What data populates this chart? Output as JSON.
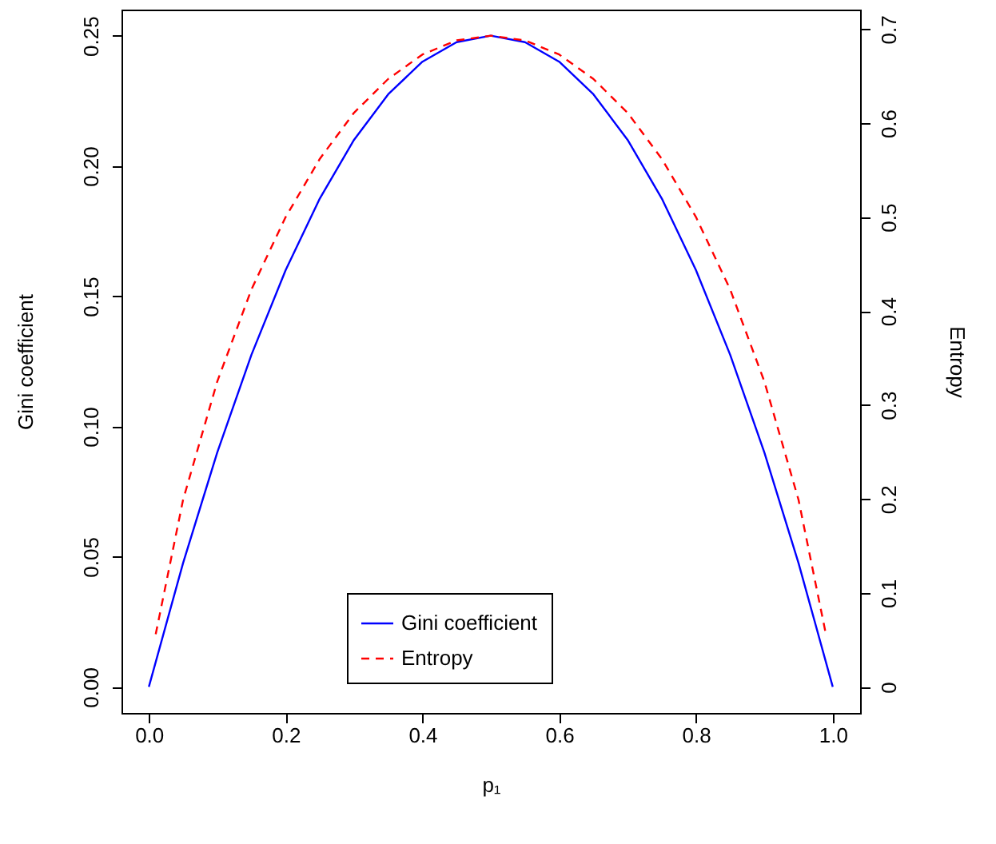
{
  "chart_data": {
    "type": "line",
    "xlabel": "p₁",
    "ylabel": "Gini coefficient",
    "y2label": "Entropy",
    "xlim": [
      -0.04,
      1.04
    ],
    "xticks": [
      {
        "value": 0,
        "label": "0.0"
      },
      {
        "value": 0.2,
        "label": "0.2"
      },
      {
        "value": 0.4,
        "label": "0.4"
      },
      {
        "value": 0.6,
        "label": "0.6"
      },
      {
        "value": 0.8,
        "label": "0.8"
      },
      {
        "value": 1,
        "label": "1.0"
      }
    ],
    "ylim": [
      -0.01,
      0.26
    ],
    "yticks": [
      {
        "value": 0,
        "label": "0.00"
      },
      {
        "value": 0.05,
        "label": "0.05"
      },
      {
        "value": 0.1,
        "label": "0.10"
      },
      {
        "value": 0.15,
        "label": "0.15"
      },
      {
        "value": 0.2,
        "label": "0.20"
      },
      {
        "value": 0.25,
        "label": "0.25"
      }
    ],
    "y2lim": [
      -0.0277,
      0.7208
    ],
    "y2ticks": [
      0,
      0.1,
      0.2,
      0.3,
      0.4,
      0.5,
      0.6,
      0.7
    ],
    "legend": "bottom",
    "grid": false,
    "series": [
      {
        "name": "Gini coefficient",
        "color": "#0000ff",
        "line_style": "solid",
        "x": [
          0,
          0.05,
          0.1,
          0.15,
          0.2,
          0.25,
          0.3,
          0.35,
          0.4,
          0.45,
          0.5,
          0.55,
          0.6,
          0.65,
          0.7,
          0.75,
          0.8,
          0.85,
          0.9,
          0.95,
          1
        ],
        "values": [
          0,
          0.0475,
          0.09,
          0.1275,
          0.16,
          0.1875,
          0.21,
          0.2275,
          0.24,
          0.2475,
          0.25,
          0.2475,
          0.24,
          0.2275,
          0.21,
          0.1875,
          0.16,
          0.1275,
          0.09,
          0.0475,
          0
        ]
      },
      {
        "name": "Entropy",
        "color": "#ff0000",
        "line_style": "dashed",
        "axis": "y2",
        "x": [
          0.01,
          0.05,
          0.1,
          0.15,
          0.2,
          0.25,
          0.3,
          0.35,
          0.4,
          0.45,
          0.5,
          0.55,
          0.6,
          0.65,
          0.7,
          0.75,
          0.8,
          0.85,
          0.9,
          0.95,
          0.99
        ],
        "values": [
          0.056,
          0.199,
          0.325,
          0.423,
          0.5,
          0.562,
          0.611,
          0.647,
          0.673,
          0.688,
          0.693,
          0.688,
          0.673,
          0.647,
          0.611,
          0.562,
          0.5,
          0.423,
          0.325,
          0.199,
          0.056
        ]
      }
    ]
  }
}
